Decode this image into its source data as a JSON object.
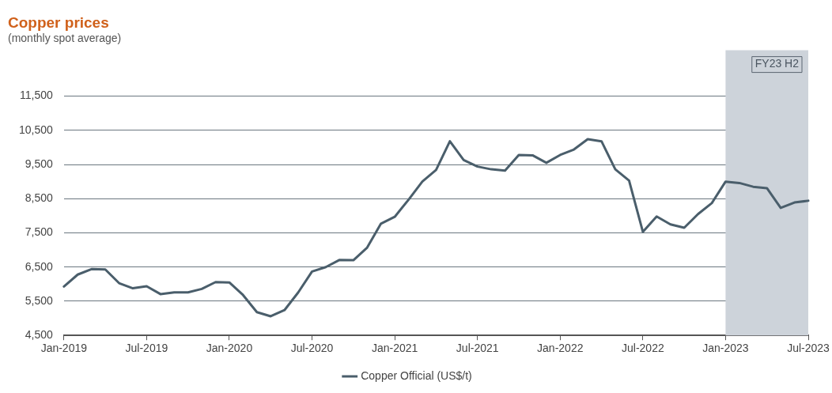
{
  "chart_data": {
    "type": "line",
    "title": "Copper prices",
    "subtitle": "(monthly spot average)",
    "categories": [
      "Jan-2019",
      null,
      null,
      null,
      null,
      null,
      "Jul-2019",
      null,
      null,
      null,
      null,
      null,
      "Jan-2020",
      null,
      null,
      null,
      null,
      null,
      "Jul-2020",
      null,
      null,
      null,
      null,
      null,
      "Jan-2021",
      null,
      null,
      null,
      null,
      null,
      "Jul-2021",
      null,
      null,
      null,
      null,
      null,
      "Jan-2022",
      null,
      null,
      null,
      null,
      null,
      "Jul-2022",
      null,
      null,
      null,
      null,
      null,
      "Jan-2023",
      null,
      null,
      null,
      null,
      null,
      "Jul-2023"
    ],
    "series": [
      {
        "name": "Copper Official (US$/t)",
        "color": "#4a5e6b",
        "values": [
          5930,
          6280,
          6440,
          6430,
          6030,
          5880,
          5940,
          5710,
          5760,
          5760,
          5860,
          6060,
          6050,
          5680,
          5180,
          5060,
          5240,
          5760,
          6370,
          6500,
          6710,
          6700,
          7070,
          7770,
          7970,
          8470,
          9000,
          9340,
          10180,
          9630,
          9440,
          9360,
          9320,
          9780,
          9770,
          9550,
          9780,
          9940,
          10240,
          10180,
          9360,
          9030,
          7530,
          7980,
          7750,
          7650,
          8050,
          8370,
          9000,
          8960,
          8850,
          8810,
          8230,
          8390,
          8440
        ]
      }
    ],
    "ylim": [
      4500,
      11500
    ],
    "yticks": [
      {
        "value": 4500,
        "label": "4,500"
      },
      {
        "value": 5500,
        "label": "5,500"
      },
      {
        "value": 6500,
        "label": "6,500"
      },
      {
        "value": 7500,
        "label": "7,500"
      },
      {
        "value": 8500,
        "label": "8,500"
      },
      {
        "value": 9500,
        "label": "9,500"
      },
      {
        "value": 10500,
        "label": "10,500"
      },
      {
        "value": 11500,
        "label": "11,500"
      }
    ],
    "bands": [
      {
        "axis": "x",
        "from": "Jan-2023",
        "to": "Jul-2023",
        "label": "FY23 H2",
        "color": "#cdd3da"
      }
    ],
    "grid": "y",
    "legend": "bottom",
    "marker": "none",
    "line_style": "solid"
  }
}
